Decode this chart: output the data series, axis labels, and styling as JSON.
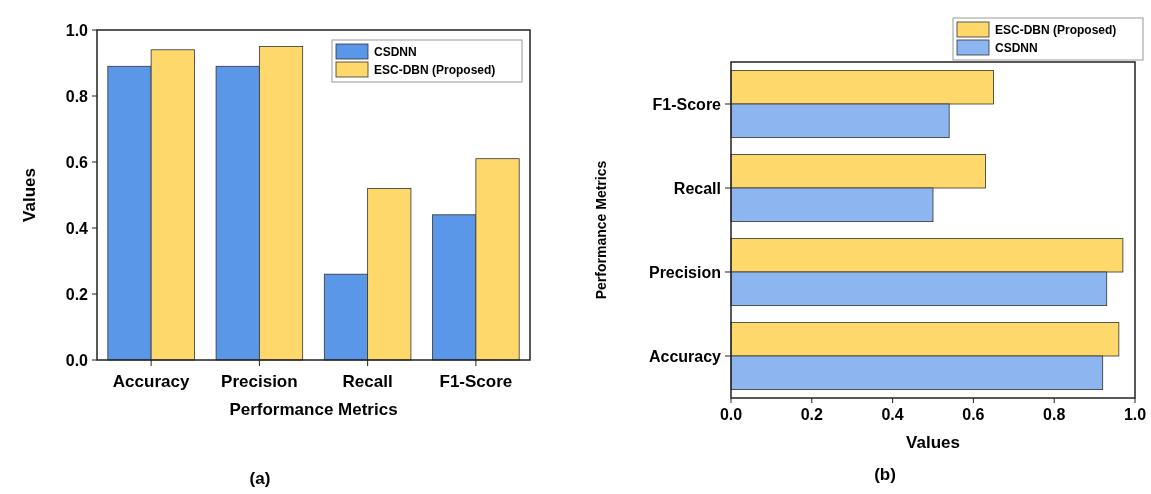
{
  "chart_data": [
    {
      "type": "bar",
      "xlabel": "Performance Metrics",
      "ylabel": "Values",
      "categories": [
        "Accuracy",
        "Precision",
        "Recall",
        "F1-Score"
      ],
      "series": [
        {
          "name": "CSDNN",
          "color": "#5b97e8",
          "values": [
            0.89,
            0.89,
            0.26,
            0.44
          ]
        },
        {
          "name": "ESC-DBN (Proposed)",
          "color": "#ffd86b",
          "values": [
            0.94,
            0.95,
            0.52,
            0.61
          ]
        }
      ],
      "ylim": [
        0,
        1
      ],
      "yticks": [
        {
          "value": 0,
          "label": "0.0"
        },
        0.2,
        0.4,
        0.6,
        0.8,
        {
          "value": 1,
          "label": "1.0"
        }
      ],
      "legend": "top right",
      "annotations": [
        "(a)"
      ]
    },
    {
      "type": "bar",
      "orientation": "horizontal",
      "xlabel": "Values",
      "ylabel": "Performance Metrics",
      "categories": [
        "F1-Score",
        "Recall",
        "Precision",
        "Accuracy"
      ],
      "series": [
        {
          "name": "ESC-DBN (Proposed)",
          "color": "#ffd86b",
          "values": [
            0.65,
            0.63,
            0.97,
            0.96
          ]
        },
        {
          "name": "CSDNN",
          "color": "#8db6f0",
          "values": [
            0.54,
            0.5,
            0.93,
            0.92
          ]
        }
      ],
      "xlim": [
        0,
        1
      ],
      "xticks": [
        {
          "value": 0,
          "label": "0.0"
        },
        0.2,
        0.4,
        0.6,
        0.8,
        {
          "value": 1,
          "label": "1.0"
        }
      ],
      "legend": "top right",
      "annotations": [
        "(b)"
      ]
    }
  ]
}
